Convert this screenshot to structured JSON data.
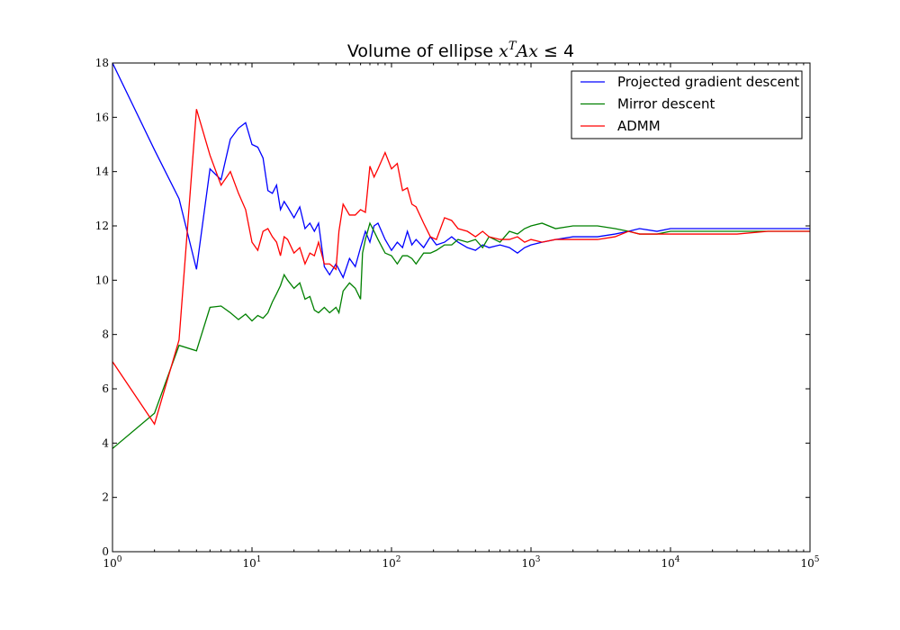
{
  "chart_data": {
    "type": "line",
    "title_prefix": "Volume of ellipse ",
    "title_math": "x",
    "title_sup": "T",
    "title_math2": "Ax",
    "title_rel": " ≤ 4",
    "x_scale": "log",
    "xlim": [
      1,
      100000
    ],
    "ylim": [
      0,
      18
    ],
    "grid": false,
    "legend_position": "top-right",
    "x_ticks": [
      {
        "value": 1,
        "base": "10",
        "exp": "0"
      },
      {
        "value": 10,
        "base": "10",
        "exp": "1"
      },
      {
        "value": 100,
        "base": "10",
        "exp": "2"
      },
      {
        "value": 1000,
        "base": "10",
        "exp": "3"
      },
      {
        "value": 10000,
        "base": "10",
        "exp": "4"
      },
      {
        "value": 100000,
        "base": "10",
        "exp": "5"
      }
    ],
    "y_ticks": [
      0,
      2,
      4,
      6,
      8,
      10,
      12,
      14,
      16,
      18
    ],
    "series": [
      {
        "name": "Projected gradient descent",
        "color": "#0000ff",
        "points": [
          [
            1,
            18.0
          ],
          [
            2,
            14.8
          ],
          [
            3,
            13.0
          ],
          [
            4,
            10.4
          ],
          [
            5,
            14.1
          ],
          [
            6,
            13.7
          ],
          [
            7,
            15.2
          ],
          [
            8,
            15.6
          ],
          [
            9,
            15.8
          ],
          [
            10,
            15.0
          ],
          [
            11,
            14.9
          ],
          [
            12,
            14.5
          ],
          [
            13,
            13.3
          ],
          [
            14,
            13.2
          ],
          [
            15,
            13.5
          ],
          [
            16,
            12.6
          ],
          [
            17,
            12.9
          ],
          [
            18,
            12.7
          ],
          [
            20,
            12.3
          ],
          [
            22,
            12.7
          ],
          [
            24,
            11.9
          ],
          [
            26,
            12.1
          ],
          [
            28,
            11.8
          ],
          [
            30,
            12.1
          ],
          [
            33,
            10.5
          ],
          [
            36,
            10.2
          ],
          [
            40,
            10.6
          ],
          [
            45,
            10.1
          ],
          [
            50,
            10.8
          ],
          [
            55,
            10.5
          ],
          [
            60,
            11.2
          ],
          [
            65,
            11.8
          ],
          [
            70,
            11.4
          ],
          [
            75,
            12.0
          ],
          [
            80,
            12.1
          ],
          [
            90,
            11.5
          ],
          [
            100,
            11.1
          ],
          [
            110,
            11.4
          ],
          [
            120,
            11.2
          ],
          [
            130,
            11.8
          ],
          [
            140,
            11.3
          ],
          [
            150,
            11.5
          ],
          [
            170,
            11.2
          ],
          [
            190,
            11.6
          ],
          [
            210,
            11.3
          ],
          [
            240,
            11.4
          ],
          [
            270,
            11.6
          ],
          [
            300,
            11.4
          ],
          [
            350,
            11.2
          ],
          [
            400,
            11.1
          ],
          [
            450,
            11.3
          ],
          [
            500,
            11.2
          ],
          [
            600,
            11.3
          ],
          [
            700,
            11.2
          ],
          [
            800,
            11.0
          ],
          [
            900,
            11.2
          ],
          [
            1000,
            11.3
          ],
          [
            1200,
            11.4
          ],
          [
            1500,
            11.5
          ],
          [
            2000,
            11.6
          ],
          [
            3000,
            11.6
          ],
          [
            4000,
            11.7
          ],
          [
            5000,
            11.8
          ],
          [
            6000,
            11.9
          ],
          [
            8000,
            11.8
          ],
          [
            10000,
            11.9
          ],
          [
            15000,
            11.9
          ],
          [
            20000,
            11.9
          ],
          [
            30000,
            11.9
          ],
          [
            50000,
            11.9
          ],
          [
            100000,
            11.9
          ]
        ]
      },
      {
        "name": "Mirror descent",
        "color": "#008000",
        "points": [
          [
            1,
            3.8
          ],
          [
            2,
            5.1
          ],
          [
            3,
            7.6
          ],
          [
            4,
            7.4
          ],
          [
            5,
            9.0
          ],
          [
            6,
            9.05
          ],
          [
            7,
            8.8
          ],
          [
            8,
            8.55
          ],
          [
            9,
            8.75
          ],
          [
            10,
            8.5
          ],
          [
            11,
            8.7
          ],
          [
            12,
            8.6
          ],
          [
            13,
            8.8
          ],
          [
            14,
            9.2
          ],
          [
            15,
            9.5
          ],
          [
            16,
            9.8
          ],
          [
            17,
            10.2
          ],
          [
            18,
            10.0
          ],
          [
            20,
            9.7
          ],
          [
            22,
            9.9
          ],
          [
            24,
            9.3
          ],
          [
            26,
            9.4
          ],
          [
            28,
            8.9
          ],
          [
            30,
            8.8
          ],
          [
            33,
            9.0
          ],
          [
            36,
            8.8
          ],
          [
            40,
            9.0
          ],
          [
            42,
            8.8
          ],
          [
            45,
            9.6
          ],
          [
            50,
            9.9
          ],
          [
            55,
            9.7
          ],
          [
            60,
            9.3
          ],
          [
            62,
            11.0
          ],
          [
            65,
            11.5
          ],
          [
            70,
            12.1
          ],
          [
            75,
            11.8
          ],
          [
            80,
            11.5
          ],
          [
            90,
            11.0
          ],
          [
            100,
            10.9
          ],
          [
            110,
            10.6
          ],
          [
            120,
            10.9
          ],
          [
            130,
            10.9
          ],
          [
            140,
            10.8
          ],
          [
            150,
            10.6
          ],
          [
            170,
            11.0
          ],
          [
            190,
            11.0
          ],
          [
            210,
            11.1
          ],
          [
            240,
            11.3
          ],
          [
            270,
            11.3
          ],
          [
            300,
            11.5
          ],
          [
            350,
            11.4
          ],
          [
            400,
            11.5
          ],
          [
            450,
            11.2
          ],
          [
            500,
            11.6
          ],
          [
            600,
            11.4
          ],
          [
            700,
            11.8
          ],
          [
            800,
            11.7
          ],
          [
            900,
            11.9
          ],
          [
            1000,
            12.0
          ],
          [
            1200,
            12.1
          ],
          [
            1500,
            11.9
          ],
          [
            2000,
            12.0
          ],
          [
            3000,
            12.0
          ],
          [
            4000,
            11.9
          ],
          [
            5000,
            11.8
          ],
          [
            6000,
            11.7
          ],
          [
            8000,
            11.7
          ],
          [
            10000,
            11.8
          ],
          [
            15000,
            11.8
          ],
          [
            20000,
            11.8
          ],
          [
            30000,
            11.8
          ],
          [
            50000,
            11.8
          ],
          [
            100000,
            11.8
          ]
        ]
      },
      {
        "name": "ADMM",
        "color": "#ff0000",
        "points": [
          [
            1,
            7.0
          ],
          [
            2,
            4.7
          ],
          [
            3,
            7.8
          ],
          [
            4,
            16.3
          ],
          [
            5,
            14.6
          ],
          [
            6,
            13.5
          ],
          [
            7,
            14.0
          ],
          [
            8,
            13.2
          ],
          [
            9,
            12.6
          ],
          [
            10,
            11.4
          ],
          [
            11,
            11.1
          ],
          [
            12,
            11.8
          ],
          [
            13,
            11.9
          ],
          [
            14,
            11.6
          ],
          [
            15,
            11.4
          ],
          [
            16,
            10.9
          ],
          [
            17,
            11.6
          ],
          [
            18,
            11.5
          ],
          [
            20,
            11.0
          ],
          [
            22,
            11.2
          ],
          [
            24,
            10.6
          ],
          [
            26,
            11.0
          ],
          [
            28,
            10.9
          ],
          [
            30,
            11.4
          ],
          [
            33,
            10.6
          ],
          [
            36,
            10.6
          ],
          [
            40,
            10.4
          ],
          [
            42,
            11.8
          ],
          [
            45,
            12.8
          ],
          [
            50,
            12.4
          ],
          [
            55,
            12.4
          ],
          [
            60,
            12.6
          ],
          [
            65,
            12.5
          ],
          [
            70,
            14.2
          ],
          [
            75,
            13.8
          ],
          [
            80,
            14.1
          ],
          [
            90,
            14.7
          ],
          [
            100,
            14.1
          ],
          [
            110,
            14.3
          ],
          [
            120,
            13.3
          ],
          [
            130,
            13.4
          ],
          [
            140,
            12.8
          ],
          [
            150,
            12.7
          ],
          [
            170,
            12.1
          ],
          [
            190,
            11.6
          ],
          [
            210,
            11.5
          ],
          [
            240,
            12.3
          ],
          [
            270,
            12.2
          ],
          [
            300,
            11.9
          ],
          [
            350,
            11.8
          ],
          [
            400,
            11.6
          ],
          [
            450,
            11.8
          ],
          [
            500,
            11.6
          ],
          [
            600,
            11.5
          ],
          [
            700,
            11.5
          ],
          [
            800,
            11.6
          ],
          [
            900,
            11.4
          ],
          [
            1000,
            11.5
          ],
          [
            1200,
            11.4
          ],
          [
            1500,
            11.5
          ],
          [
            2000,
            11.5
          ],
          [
            3000,
            11.5
          ],
          [
            4000,
            11.6
          ],
          [
            5000,
            11.8
          ],
          [
            6000,
            11.7
          ],
          [
            8000,
            11.7
          ],
          [
            10000,
            11.7
          ],
          [
            15000,
            11.7
          ],
          [
            20000,
            11.7
          ],
          [
            30000,
            11.7
          ],
          [
            50000,
            11.8
          ],
          [
            100000,
            11.8
          ]
        ]
      }
    ]
  }
}
